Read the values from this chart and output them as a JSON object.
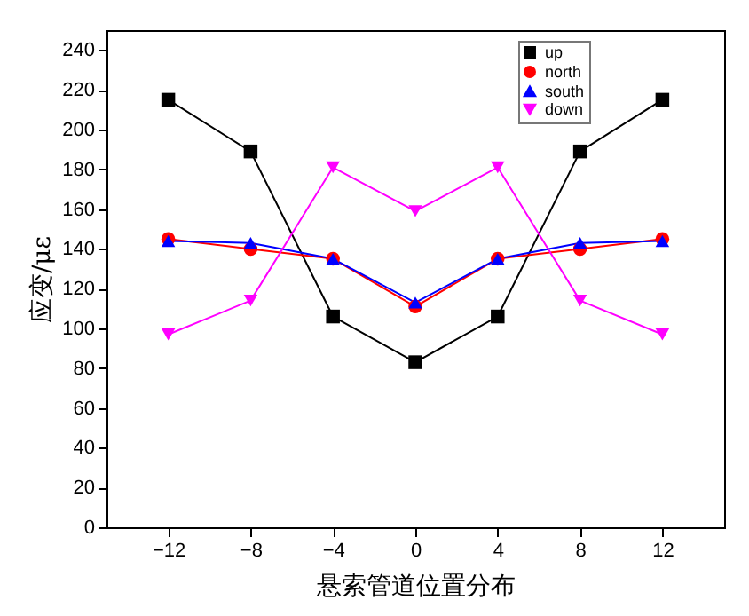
{
  "chart_data": {
    "type": "line",
    "xlabel": "悬索管道位置分布",
    "ylabel": "应变/με",
    "x": [
      -12,
      -8,
      -4,
      0,
      4,
      8,
      12
    ],
    "xlim": [
      -15,
      15
    ],
    "xticks": [
      -12,
      -8,
      -4,
      0,
      4,
      8,
      12
    ],
    "ylim": [
      0,
      250
    ],
    "yticks": [
      0,
      20,
      40,
      60,
      80,
      100,
      120,
      140,
      160,
      180,
      200,
      220,
      240
    ],
    "grid": false,
    "legend": "top right",
    "line_style": "solid",
    "series": [
      {
        "name": "up",
        "color": "#000000",
        "marker": "square",
        "values": [
          215,
          189,
          106,
          83,
          106,
          189,
          215
        ]
      },
      {
        "name": "north",
        "color": "#ff0000",
        "marker": "circle",
        "values": [
          145,
          140,
          135,
          111,
          135,
          140,
          145
        ]
      },
      {
        "name": "south",
        "color": "#0000ff",
        "marker": "triangle",
        "values": [
          144,
          143,
          135,
          113,
          135,
          143,
          144
        ]
      },
      {
        "name": "down",
        "color": "#ff00ff",
        "marker": "triangle-down",
        "values": [
          97,
          114,
          181,
          159,
          181,
          114,
          97
        ]
      }
    ]
  }
}
